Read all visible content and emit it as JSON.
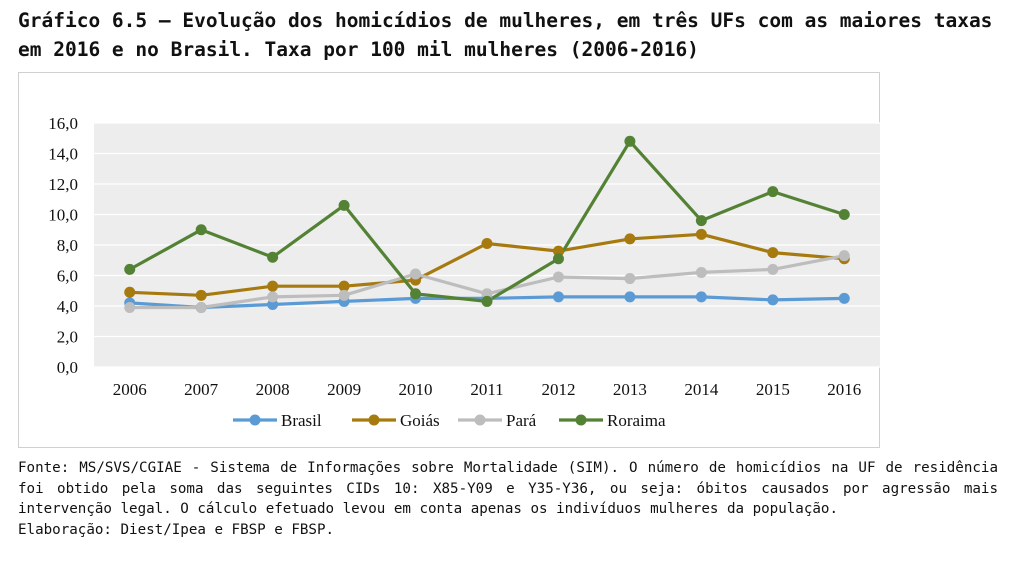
{
  "figure": {
    "title": "Gráfico 6.5 – Evolução dos homicídios de mulheres, em três UFs com as maiores taxas em 2016 e no Brasil. Taxa por 100 mil mulheres (2006-2016)",
    "source": "Fonte: MS/SVS/CGIAE - Sistema de Informações sobre Mortalidade (SIM). O número de homicídios na UF de residência foi obtido pela soma das seguintes CIDs 10: X85-Y09 e Y35-Y36, ou seja: óbitos causados por agressão mais intervenção legal. O cálculo efetuado levou em conta apenas os indivíduos mulheres da população.",
    "elaboration": "Elaboração: Diest/Ipea e FBSP e FBSP."
  },
  "chart_data": {
    "type": "line",
    "x": [
      "2006",
      "2007",
      "2008",
      "2009",
      "2010",
      "2011",
      "2012",
      "2013",
      "2014",
      "2015",
      "2016"
    ],
    "ylim": [
      0,
      16
    ],
    "yticks": [
      "0,0",
      "2,0",
      "4,0",
      "6,0",
      "8,0",
      "10,0",
      "12,0",
      "14,0",
      "16,0"
    ],
    "ytick_values": [
      0,
      2,
      4,
      6,
      8,
      10,
      12,
      14,
      16
    ],
    "grid": true,
    "legend": "bottom",
    "series": [
      {
        "name": "Brasil",
        "color": "#5B9BD5",
        "values": [
          4.2,
          3.9,
          4.1,
          4.3,
          4.5,
          4.5,
          4.6,
          4.6,
          4.6,
          4.4,
          4.5
        ]
      },
      {
        "name": "Goiás",
        "color": "#A67A0F",
        "values": [
          4.9,
          4.7,
          5.3,
          5.3,
          5.7,
          8.1,
          7.6,
          8.4,
          8.7,
          7.5,
          7.1
        ]
      },
      {
        "name": "Pará",
        "color": "#BDBDBD",
        "values": [
          3.9,
          3.9,
          4.6,
          4.7,
          6.1,
          4.8,
          5.9,
          5.8,
          6.2,
          6.4,
          7.3
        ]
      },
      {
        "name": "Roraima",
        "color": "#548235",
        "values": [
          6.4,
          9.0,
          7.2,
          10.6,
          4.8,
          4.3,
          7.1,
          14.8,
          9.6,
          11.5,
          10.0
        ]
      }
    ]
  }
}
